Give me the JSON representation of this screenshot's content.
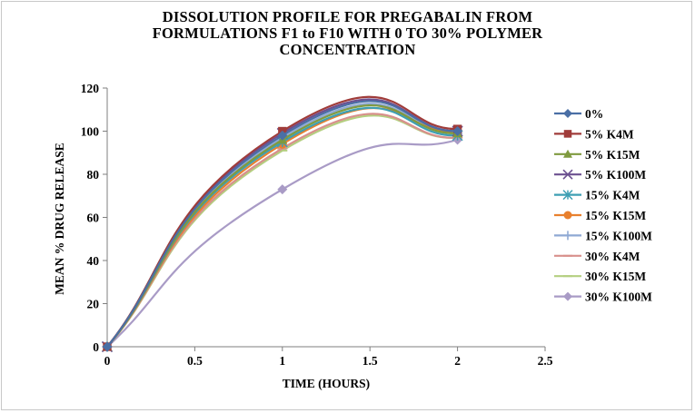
{
  "chart_data": {
    "type": "line",
    "title_lines": [
      "DISSOLUTION PROFILE FOR PREGABALIN FROM",
      "FORMULATIONS F1 to F10 WITH 0 TO 30% POLYMER",
      "CONCENTRATION"
    ],
    "xlabel": "TIME (HOURS)",
    "ylabel": "MEAN % DRUG RELEASE",
    "xlim": [
      0,
      2.5
    ],
    "ylim": [
      0,
      120
    ],
    "x_ticks": [
      "0",
      "0.5",
      "1",
      "1.5",
      "2",
      "2.5"
    ],
    "y_ticks": [
      "0",
      "20",
      "40",
      "60",
      "80",
      "100",
      "120"
    ],
    "grid": false,
    "legend_position": "right",
    "x": [
      0,
      1,
      2
    ],
    "series": [
      {
        "name": "0%",
        "values": [
          0,
          98,
          100
        ],
        "color": "#4a6fa5",
        "marker": "diamond"
      },
      {
        "name": "5% K4M",
        "values": [
          0,
          100,
          101
        ],
        "color": "#a03c3a",
        "marker": "square"
      },
      {
        "name": "5% K15M",
        "values": [
          0,
          96,
          99
        ],
        "color": "#7f9a3f",
        "marker": "triangle"
      },
      {
        "name": "5% K100M",
        "values": [
          0,
          99,
          100
        ],
        "color": "#6b5090",
        "marker": "x"
      },
      {
        "name": "15% K4M",
        "values": [
          0,
          95,
          98
        ],
        "color": "#3d9fb3",
        "marker": "asterisk"
      },
      {
        "name": "15% K15M",
        "values": [
          0,
          94,
          100
        ],
        "color": "#e8802e",
        "marker": "circle"
      },
      {
        "name": "15% K100M",
        "values": [
          0,
          97,
          99
        ],
        "color": "#8fa9d4",
        "marker": "plus"
      },
      {
        "name": "30% K4M",
        "values": [
          0,
          92,
          97
        ],
        "color": "#d8908c",
        "marker": "dash"
      },
      {
        "name": "30% K15M",
        "values": [
          0,
          91,
          97
        ],
        "color": "#b4cf80",
        "marker": "dash"
      },
      {
        "name": "30% K100M",
        "values": [
          0,
          73,
          96
        ],
        "color": "#a99bc6",
        "marker": "diamond"
      }
    ]
  }
}
